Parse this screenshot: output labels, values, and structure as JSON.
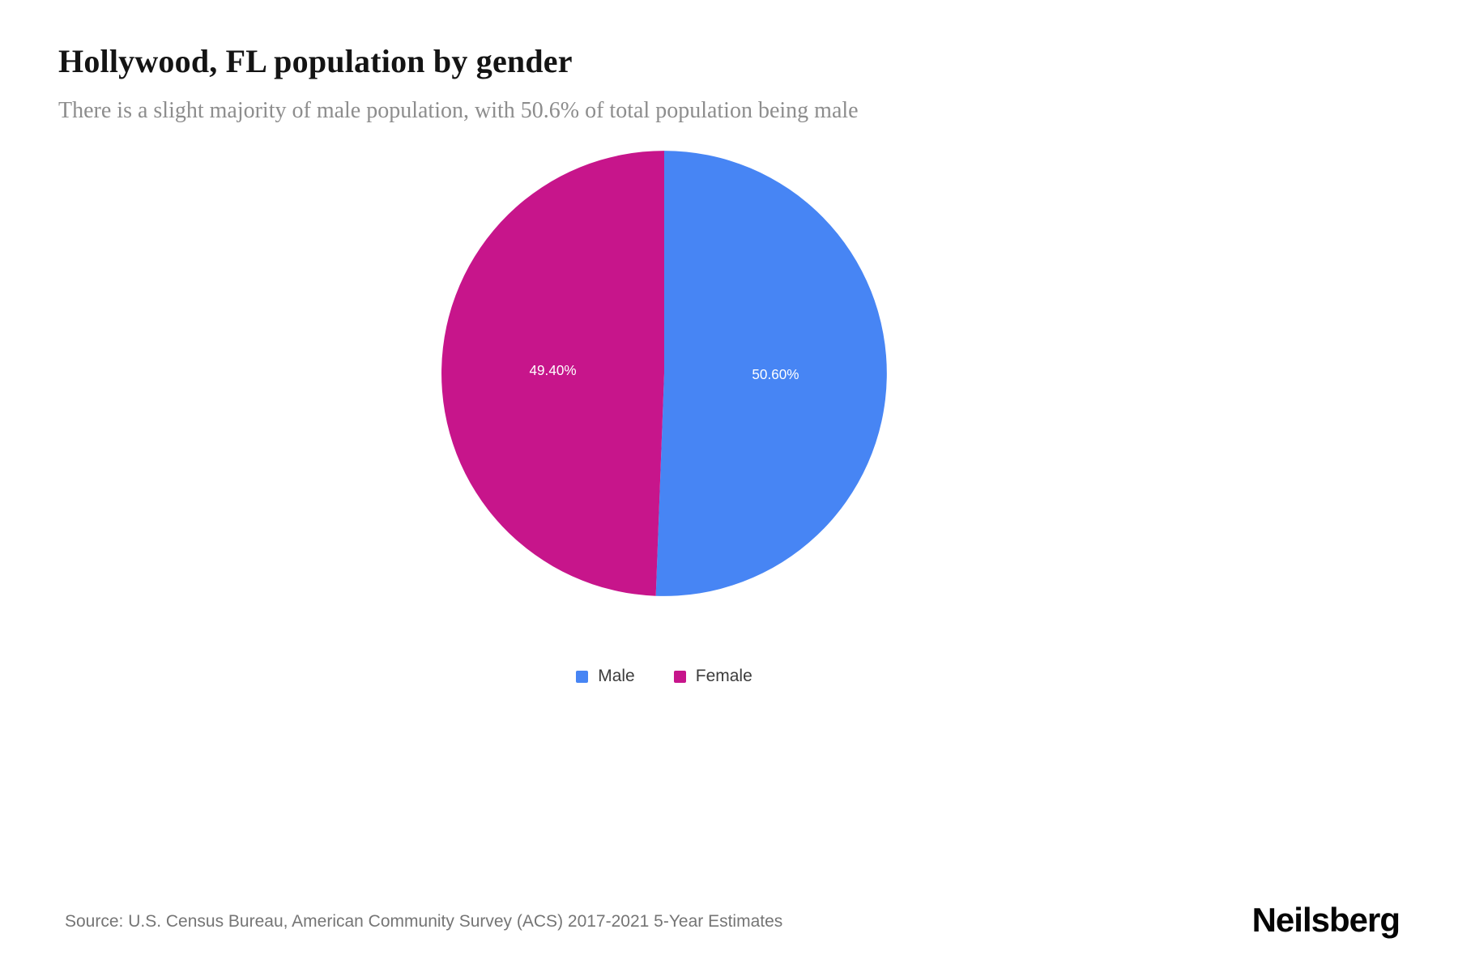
{
  "header": {
    "title": "Hollywood, FL population by gender",
    "subtitle": "There is a slight majority of male population, with 50.6% of total population being male"
  },
  "chart_data": {
    "type": "pie",
    "title": "Hollywood, FL population by gender",
    "start_angle_deg": 0,
    "direction": "clockwise",
    "legend_position": "bottom",
    "label_radius_ratio": 0.5,
    "slices": [
      {
        "label": "Male",
        "value": 50.6,
        "display": "50.60%",
        "color": "#4785F4"
      },
      {
        "label": "Female",
        "value": 49.4,
        "display": "49.40%",
        "color": "#C7158B"
      }
    ]
  },
  "footer": {
    "source": "Source: U.S. Census Bureau, American Community Survey (ACS) 2017-2021 5-Year Estimates",
    "brand": "Neilsberg"
  }
}
